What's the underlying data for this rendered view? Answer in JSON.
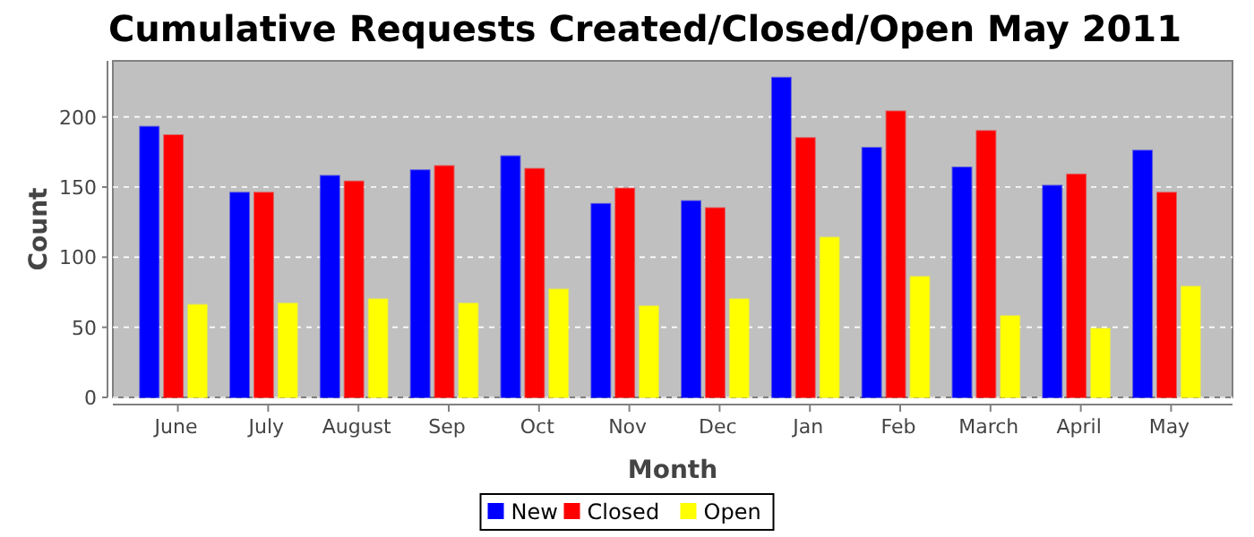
{
  "chart_data": {
    "type": "bar",
    "title": "Cumulative Requests Created/Closed/Open May 2011",
    "xlabel": "Month",
    "ylabel": "Count",
    "categories": [
      "June",
      "July",
      "August",
      "Sep",
      "Oct",
      "Nov",
      "Dec",
      "Jan",
      "Feb",
      "March",
      "April",
      "May"
    ],
    "series": [
      {
        "name": "New",
        "color": "#0000ff",
        "values": [
          193,
          146,
          158,
          162,
          172,
          138,
          140,
          228,
          178,
          164,
          151,
          176
        ]
      },
      {
        "name": "Closed",
        "color": "#ff0000",
        "values": [
          187,
          146,
          154,
          165,
          163,
          149,
          135,
          185,
          204,
          190,
          159,
          146
        ]
      },
      {
        "name": "Open",
        "color": "#ffff00",
        "values": [
          66,
          67,
          70,
          67,
          77,
          65,
          70,
          114,
          86,
          58,
          49,
          79
        ]
      }
    ],
    "ylim": [
      0,
      240
    ],
    "yticks": [
      0,
      50,
      100,
      150,
      200
    ],
    "grid": "y",
    "legend": "bottom"
  }
}
